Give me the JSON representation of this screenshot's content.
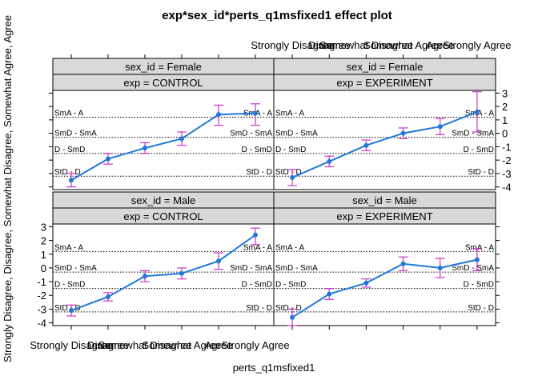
{
  "chart_data": {
    "type": "line",
    "title": "exp*sex_id*perts_q1msfixed1 effect plot",
    "xlabel": "perts_q1msfixed1",
    "ylabel": "Strongly Disagree, Disagree, Somewhat Disagree, Somewhat Agree, Agree",
    "categories": [
      "Strongly Disagree",
      "Disagree",
      "Somewhat Disagree",
      "Somewhat Agree",
      "Agree",
      "Strongly Agree"
    ],
    "ylim": [
      -4.2,
      3.2
    ],
    "yticks": [
      -4,
      -3,
      -2,
      -1,
      0,
      1,
      2,
      3
    ],
    "thresholds": [
      {
        "label": "SmA - A",
        "value": 1.2
      },
      {
        "label": "SmD - SmA",
        "value": -0.3
      },
      {
        "label": "D - SmD",
        "value": -1.5
      },
      {
        "label": "StD - D",
        "value": -3.2
      }
    ],
    "colors": {
      "line": "#1f78d8",
      "error": "#c935c9",
      "strip": "#d9d9d9"
    },
    "panels": [
      {
        "sex_label": "sex_id = Female",
        "exp_label": "exp = CONTROL",
        "values": [
          -3.5,
          -1.9,
          -1.1,
          -0.4,
          1.4,
          1.5
        ],
        "lower": [
          -4.0,
          -2.3,
          -1.5,
          -0.9,
          0.6,
          0.6
        ],
        "upper": [
          -3.0,
          -1.5,
          -0.7,
          0.1,
          2.1,
          2.2
        ]
      },
      {
        "sex_label": "sex_id = Female",
        "exp_label": "exp = EXPERIMENT",
        "values": [
          -3.3,
          -2.1,
          -0.9,
          0.0,
          0.5,
          1.6
        ],
        "lower": [
          -3.9,
          -2.5,
          -1.3,
          -0.4,
          -0.1,
          0.1
        ],
        "upper": [
          -2.7,
          -1.7,
          -0.5,
          0.4,
          1.1,
          3.1
        ]
      },
      {
        "sex_label": "sex_id = Male",
        "exp_label": "exp = CONTROL",
        "values": [
          -3.1,
          -2.1,
          -0.6,
          -0.4,
          0.5,
          2.4
        ],
        "lower": [
          -3.5,
          -2.4,
          -1.0,
          -0.8,
          -0.1,
          1.7
        ],
        "upper": [
          -2.7,
          -1.8,
          -0.2,
          0.0,
          1.1,
          2.9
        ]
      },
      {
        "sex_label": "sex_id = Male",
        "exp_label": "exp = EXPERIMENT",
        "values": [
          -3.6,
          -1.9,
          -1.1,
          0.3,
          0.0,
          0.6
        ],
        "lower": [
          -4.2,
          -2.3,
          -1.4,
          -0.2,
          -0.7,
          -0.2
        ],
        "upper": [
          -3.0,
          -1.5,
          -0.8,
          0.8,
          0.7,
          1.4
        ]
      }
    ]
  }
}
